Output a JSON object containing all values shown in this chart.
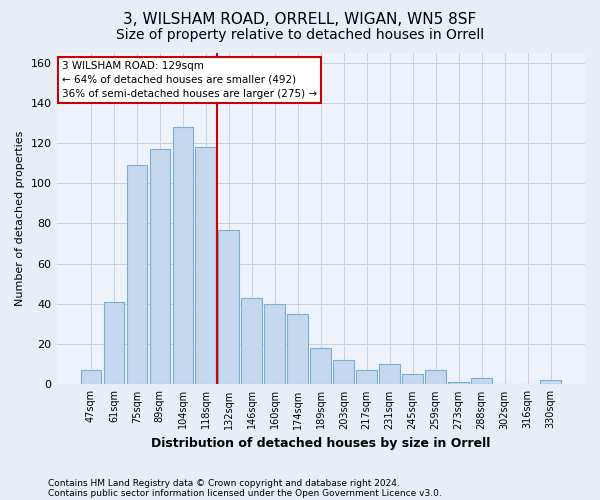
{
  "title": "3, WILSHAM ROAD, ORRELL, WIGAN, WN5 8SF",
  "subtitle": "Size of property relative to detached houses in Orrell",
  "xlabel": "Distribution of detached houses by size in Orrell",
  "ylabel": "Number of detached properties",
  "footnote1": "Contains HM Land Registry data © Crown copyright and database right 2024.",
  "footnote2": "Contains public sector information licensed under the Open Government Licence v3.0.",
  "bar_labels": [
    "47sqm",
    "61sqm",
    "75sqm",
    "89sqm",
    "104sqm",
    "118sqm",
    "132sqm",
    "146sqm",
    "160sqm",
    "174sqm",
    "189sqm",
    "203sqm",
    "217sqm",
    "231sqm",
    "245sqm",
    "259sqm",
    "273sqm",
    "288sqm",
    "302sqm",
    "316sqm",
    "330sqm"
  ],
  "bar_values": [
    7,
    41,
    109,
    117,
    128,
    118,
    77,
    43,
    40,
    35,
    18,
    12,
    7,
    10,
    5,
    7,
    1,
    3,
    0,
    0,
    2
  ],
  "bar_color": "#c5d8ed",
  "bar_edgecolor": "#7bafd4",
  "vline_x_pos": 6.0,
  "vline_color": "#cc0000",
  "annotation_lines": [
    "3 WILSHAM ROAD: 129sqm",
    "← 64% of detached houses are smaller (492)",
    "36% of semi-detached houses are larger (275) →"
  ],
  "annotation_box_color": "#cc0000",
  "ylim": [
    0,
    165
  ],
  "yticks": [
    0,
    20,
    40,
    60,
    80,
    100,
    120,
    140,
    160
  ],
  "background_color": "#e8eef8",
  "plot_background": "#eef2fb",
  "grid_color": "#c8cfe0",
  "title_fontsize": 11,
  "subtitle_fontsize": 10,
  "footnote_fontsize": 6.5
}
